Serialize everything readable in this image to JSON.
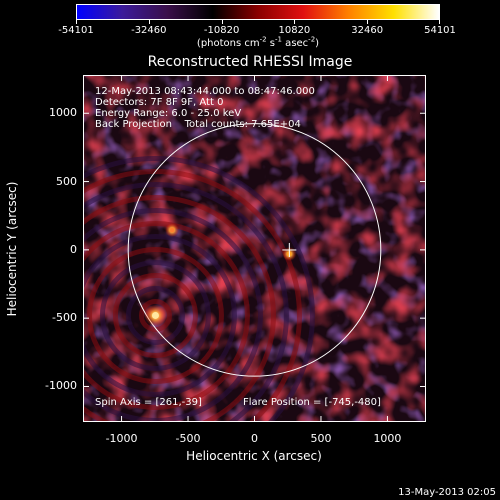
{
  "colorbar": {
    "labels": [
      "-54101",
      "-32460",
      "-10820",
      "10820",
      "32460",
      "54101"
    ],
    "units": "(photons cm",
    "units_exp1": "-2",
    "units_mid": " s",
    "units_exp2": "-1",
    "units_mid2": " asec",
    "units_exp3": "-2",
    "units_end": ")",
    "gradient_colors": [
      "#0000ff",
      "#3b1a9a",
      "#3a0f4a",
      "#000000",
      "#8a0000",
      "#e01010",
      "#ff8000",
      "#ffe000",
      "#ffffff"
    ]
  },
  "plot": {
    "title": "Reconstructed RHESSI Image",
    "info_lines": [
      "12-May-2013 08:43:44.000 to 08:47:46.000",
      "Detectors: 7F 8F 9F, Att 0",
      "Energy Range: 6.0 - 25.0 keV",
      "Back Projection    Total counts: 7.65E+04"
    ],
    "spin_axis": "Spin Axis = [261,-39]",
    "flare_position": "Flare Position = [-745,-480]",
    "xlabel": "Heliocentric X (arcsec)",
    "ylabel": "Heliocentric Y (arcsec)",
    "x_ticks": [
      -1000,
      -500,
      0,
      500,
      1000
    ],
    "y_ticks": [
      1000,
      500,
      0,
      -500,
      -1000
    ],
    "x_range": [
      -1290,
      1290
    ],
    "y_range": [
      -1260,
      1280
    ],
    "solar_radius_arcsec": 950,
    "sources": [
      {
        "x": -745,
        "y": -480,
        "color": "#ffe8a0"
      },
      {
        "x": -620,
        "y": 145,
        "color": "#ff8030"
      },
      {
        "x": 262,
        "y": -30,
        "color": "#ffa020"
      }
    ]
  },
  "footer": {
    "timestamp": "13-May-2013 02:05"
  }
}
